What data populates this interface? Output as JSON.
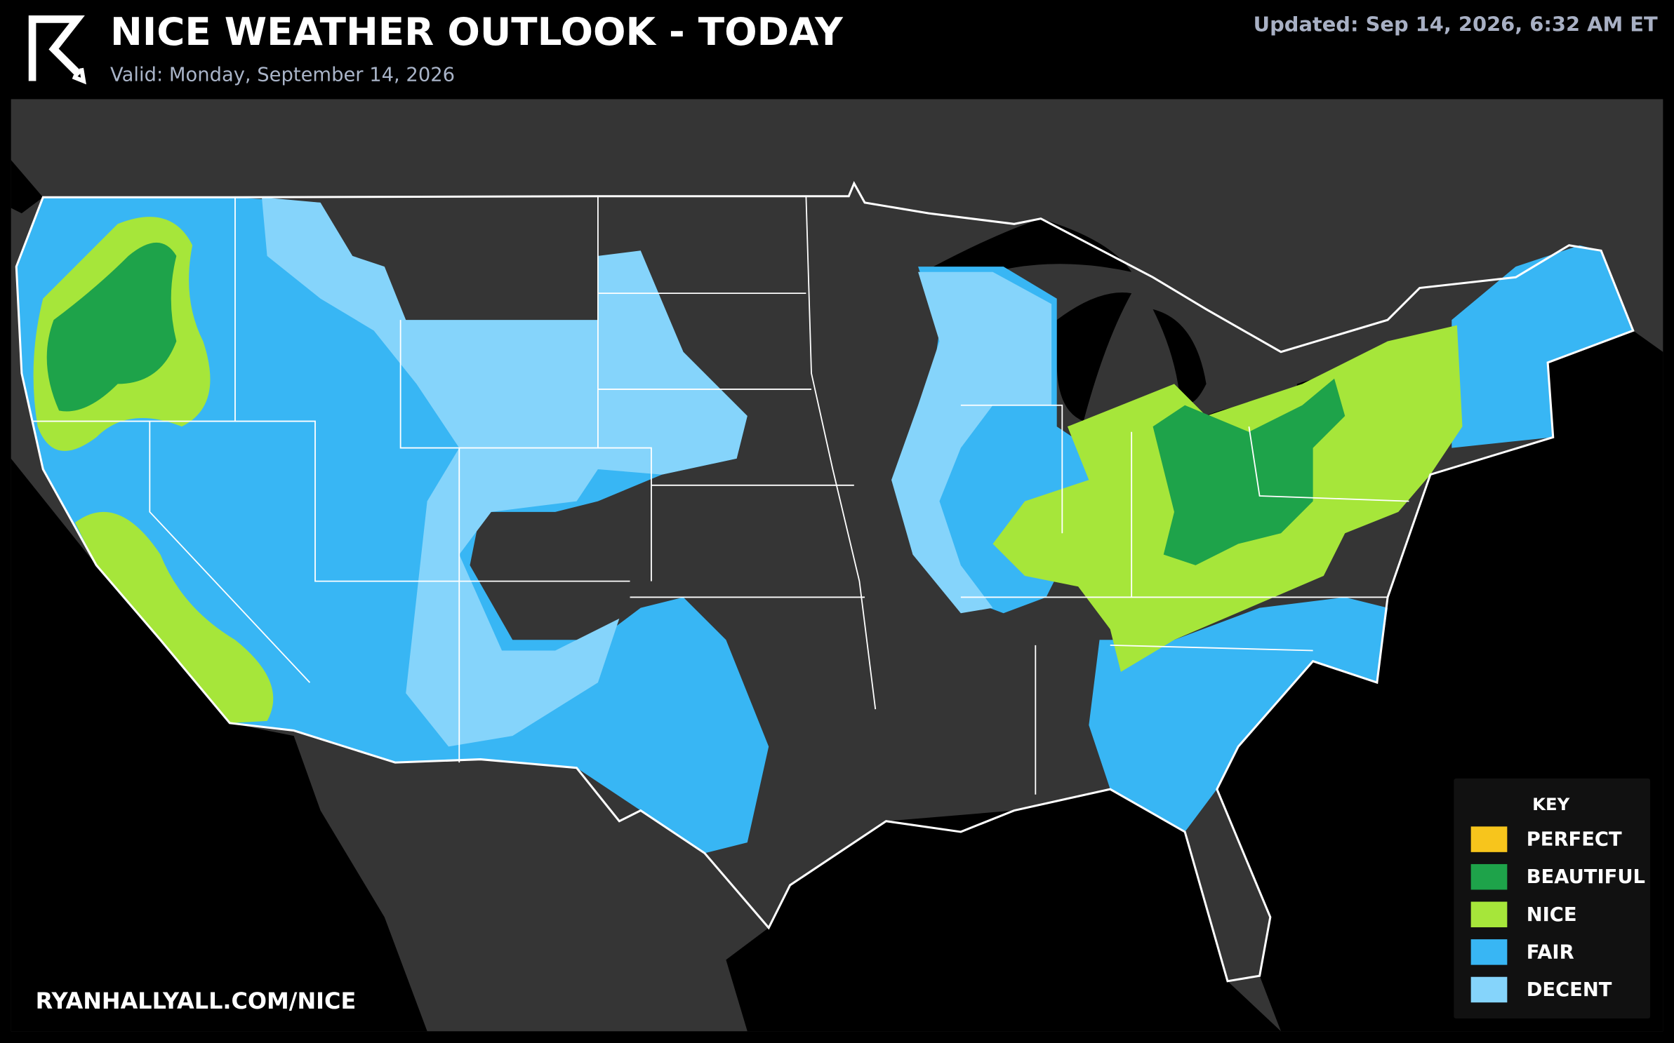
{
  "header": {
    "title": "NICE WEATHER OUTLOOK - TODAY",
    "subtitle": "Valid: Monday, September 14, 2026",
    "updated": "Updated: Sep 14, 2026, 6:32 AM ET"
  },
  "legend": {
    "title": "KEY",
    "items": [
      {
        "label": "PERFECT",
        "color": "#f7c51c"
      },
      {
        "label": "BEAUTIFUL",
        "color": "#1ea34a"
      },
      {
        "label": "NICE",
        "color": "#a6e63a"
      },
      {
        "label": "FAIR",
        "color": "#38b6f4"
      },
      {
        "label": "DECENT",
        "color": "#85d4fb"
      }
    ]
  },
  "footer": {
    "url": "RYANHALLYALL.COM/NICE"
  }
}
